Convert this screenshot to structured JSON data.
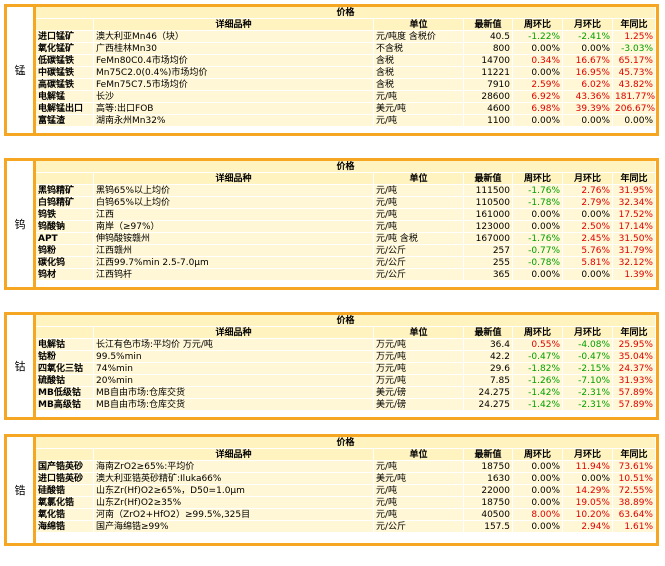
{
  "panels": [
    {
      "side": "锰",
      "title": "价格",
      "headers": [
        "",
        "详细品种",
        "单位",
        "最新值",
        "周环比",
        "月环比",
        "年同比"
      ],
      "rows": [
        [
          "进口锰矿",
          "澳大利亚Mn46（块）",
          "元/吨度 含税价",
          "40.5",
          "-1.22%",
          "-2.41%",
          "1.25%"
        ],
        [
          "氧化锰矿",
          "广西桂林Mn30",
          "不含税",
          "800",
          "0.00%",
          "0.00%",
          "-3.03%"
        ],
        [
          "低碳锰铁",
          "FeMn80C0.4市场均价",
          "含税",
          "14700",
          "0.34%",
          "16.67%",
          "65.17%"
        ],
        [
          "中碳锰铁",
          "Mn75C2.0(0.4%)市场均价",
          "含税",
          "11221",
          "0.00%",
          "16.95%",
          "45.73%"
        ],
        [
          "高碳锰铁",
          "FeMn75C7.5市场均价",
          "含税",
          "7910",
          "2.59%",
          "6.02%",
          "43.82%"
        ],
        [
          "电解锰",
          "长沙",
          "元/吨",
          "28600",
          "6.92%",
          "43.36%",
          "181.77%"
        ],
        [
          "电解锰出口",
          "高等:出口FOB",
          "美元/吨",
          "4600",
          "6.98%",
          "39.39%",
          "206.67%"
        ],
        [
          "富锰渣",
          "湖南永州Mn32%",
          "元/吨",
          "1100",
          "0.00%",
          "0.00%",
          "0.00%"
        ]
      ]
    },
    {
      "side": "钨",
      "title": "价格",
      "headers": [
        "",
        "详细品种",
        "单位",
        "最新值",
        "周环比",
        "月环比",
        "年同比"
      ],
      "rows": [
        [
          "黑钨精矿",
          "黑钨65%以上均价",
          "元/吨",
          "111500",
          "-1.76%",
          "2.76%",
          "31.95%"
        ],
        [
          "白钨精矿",
          "白钨65%以上均价",
          "元/吨",
          "110500",
          "-1.78%",
          "2.79%",
          "32.34%"
        ],
        [
          "钨铁",
          "江西",
          "元/吨",
          "161000",
          "0.00%",
          "0.00%",
          "17.52%"
        ],
        [
          "钨酸钠",
          "南岸（≥97%）",
          "元/吨",
          "123000",
          "0.00%",
          "2.50%",
          "17.14%"
        ],
        [
          "APT",
          "伸钨酸铵赣州",
          "元/吨 含税",
          "167000",
          "-1.76%",
          "2.45%",
          "31.50%"
        ],
        [
          "钨粉",
          "江西赣州",
          "元/公斤",
          "257",
          "-0.77%",
          "5.76%",
          "31.79%"
        ],
        [
          "碳化钨",
          "江西99.7%min 2.5-7.0&micro;m",
          "元/公斤",
          "255",
          "-0.78%",
          "5.81%",
          "32.12%"
        ],
        [
          "钨材",
          "江西钨杆",
          "元/公斤",
          "365",
          "0.00%",
          "0.00%",
          "1.39%"
        ]
      ]
    },
    {
      "side": "钴",
      "title": "价格",
      "headers": [
        "",
        "详细品种",
        "单位",
        "最新值",
        "周环比",
        "月环比",
        "年同比"
      ],
      "rows": [
        [
          "电解钴",
          "长江有色市场:平均价          万元/吨",
          "万元/吨",
          "36.4",
          "0.55%",
          "-4.08%",
          "25.95%"
        ],
        [
          "钴粉",
          "99.5%min",
          "万元/吨",
          "42.2",
          "-0.47%",
          "-0.47%",
          "35.04%"
        ],
        [
          "四氧化三钴",
          "74%min",
          "万元/吨",
          "29.6",
          "-1.82%",
          "-2.15%",
          "24.37%"
        ],
        [
          "硫酸钴",
          "20%min",
          "万元/吨",
          "7.85",
          "-1.26%",
          "-7.10%",
          "31.93%"
        ],
        [
          "MB低级钴",
          "MB自由市场:仓库交货",
          "美元/磅",
          "24.275",
          "-1.42%",
          "-2.31%",
          "57.89%"
        ],
        [
          "MB高级钴",
          "MB自由市场:仓库交货",
          "美元/磅",
          "24.275",
          "-1.42%",
          "-2.31%",
          "57.89%"
        ]
      ]
    },
    {
      "side": "锆",
      "title": "价格",
      "headers": [
        "",
        "详细品种",
        "单位",
        "最新值",
        "周环比",
        "月环比",
        "年同比"
      ],
      "rows": [
        [
          "国产锆英砂",
          "海南ZrO2≥65%:平均价",
          "元/吨",
          "18750",
          "0.00%",
          "11.94%",
          "73.61%"
        ],
        [
          "进口锆英砂",
          "澳大利亚锆英砂精矿:Iluka66%",
          "美元/吨",
          "1630",
          "0.00%",
          "0.00%",
          "10.51%"
        ],
        [
          "硅酸锆",
          "山东Zr(Hf)O2≥65%，D50=1.0μm",
          "元/吨",
          "22000",
          "0.00%",
          "14.29%",
          "72.55%"
        ],
        [
          "氧氯化锆",
          "山东Zr(Hf)O2≥35%",
          "元/吨",
          "18750",
          "0.00%",
          "19.05%",
          "38.89%"
        ],
        [
          "氧化锆",
          "河南（ZrO2+HfO2）≥99.5%,325目",
          "元/吨",
          "40500",
          "8.00%",
          "10.20%",
          "63.64%"
        ],
        [
          "海绵锆",
          "国产海绵锆≥99%",
          "元/公斤",
          "157.5",
          "0.00%",
          "2.94%",
          "1.61%"
        ]
      ]
    }
  ]
}
